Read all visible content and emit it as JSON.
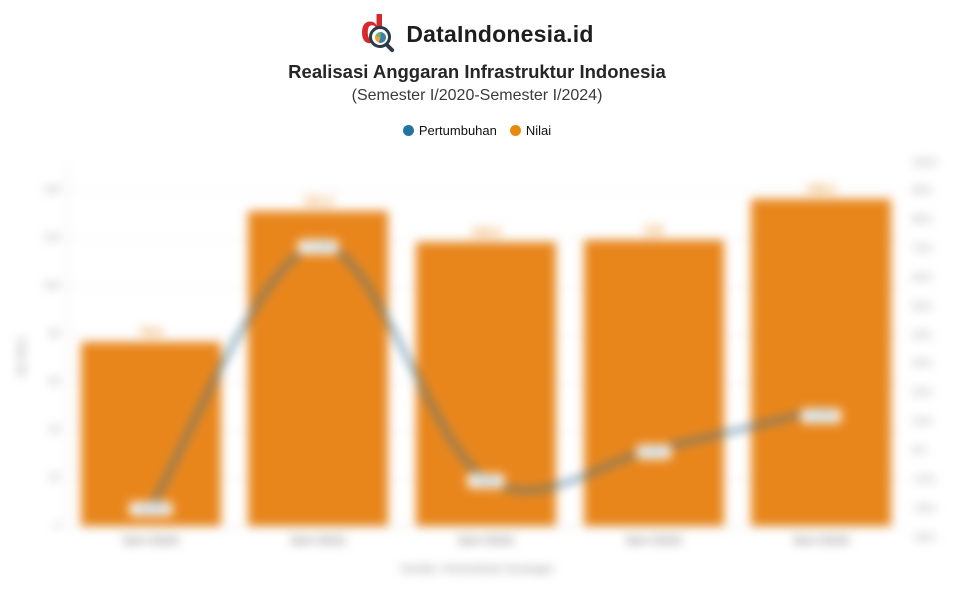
{
  "brand": {
    "wordmark": "DataIndonesia.id",
    "logo": {
      "letter": "d",
      "red": "#D7282E",
      "rim": "#2A3A47"
    }
  },
  "header": {
    "title": "Realisasi Anggaran Infrastruktur Indonesia",
    "subtitle": "(Semester I/2020-Semester I/2024)"
  },
  "legend": [
    {
      "label": "Pertumbuhan",
      "color": "#2373A3"
    },
    {
      "label": "Nilai",
      "color": "#E8890F"
    }
  ],
  "source": "Sumber: Kementerian Keuangan",
  "chart_data": {
    "type": "bar",
    "subtype": "combo-bar-line",
    "title": "Realisasi Anggaran Infrastruktur Indonesia",
    "subtitle": "(Semester I/2020-Semester I/2024)",
    "categories": [
      "Sem I/2020",
      "Sem I/2021",
      "Sem I/2022",
      "Sem I/2023",
      "Sem I/2024"
    ],
    "series": [
      {
        "name": "Nilai",
        "type": "bar",
        "unit": "Rp triliun",
        "color": "#E8861C",
        "values": [
          76.6,
          131.2,
          118.4,
          119.0,
          136.1
        ],
        "labels": [
          "76,6",
          "131,2",
          "118,4",
          "119",
          "136,1"
        ]
      },
      {
        "name": "Pertumbuhan",
        "type": "line",
        "unit": "%",
        "color": "#3F7595",
        "values": [
          -19.3,
          71.3,
          -9.8,
          0.5,
          14.4
        ],
        "labels": [
          "-19,3%",
          "71,3%",
          "-9,8%",
          "0,5%",
          "14,4%"
        ]
      }
    ],
    "left_axis": {
      "title": "Rp triliun",
      "min": 0,
      "max": 140,
      "step": 20,
      "ticks": [
        "140",
        "120",
        "100",
        "80",
        "60",
        "40",
        "20",
        "0"
      ]
    },
    "right_axis": {
      "min": -30,
      "max": 100,
      "step": 10,
      "ticks": [
        "100%",
        "90%",
        "80%",
        "70%",
        "60%",
        "50%",
        "40%",
        "30%",
        "20%",
        "10%",
        "0%",
        "-10%",
        "-20%",
        "-30%"
      ]
    },
    "grid": true,
    "legend_position": "top"
  }
}
